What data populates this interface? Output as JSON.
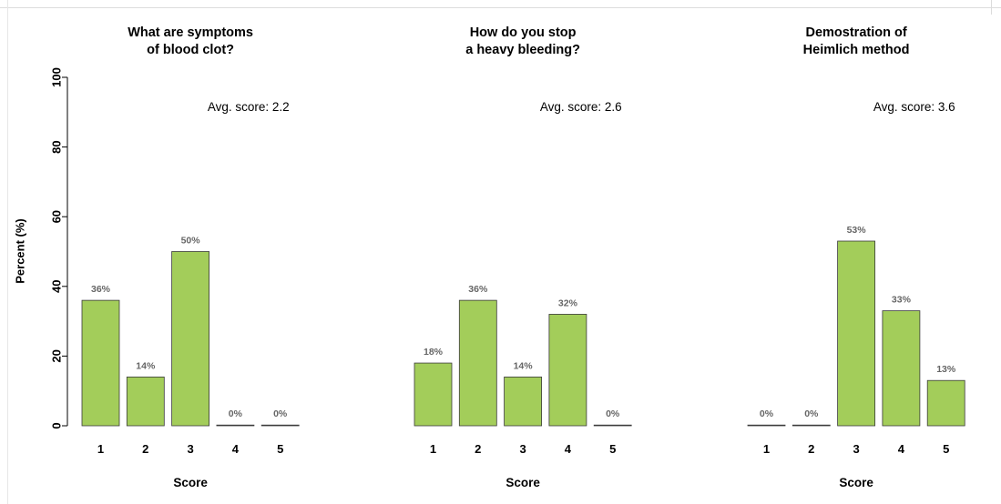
{
  "chart_data": [
    {
      "type": "bar",
      "title": [
        "What are symptoms",
        "of blood clot?"
      ],
      "categories": [
        "1",
        "2",
        "3",
        "4",
        "5"
      ],
      "values": [
        36,
        14,
        50,
        0,
        0
      ],
      "data_labels": [
        "36%",
        "14%",
        "50%",
        "0%",
        "0%"
      ],
      "annotation": "Avg. score: 2.2",
      "xlabel": "Score",
      "ylabel": "Percent (%)",
      "ylim": [
        0,
        100
      ],
      "yticks": [
        "0",
        "20",
        "40",
        "60",
        "80",
        "100"
      ],
      "bar_color": "#a3cd5a"
    },
    {
      "type": "bar",
      "title": [
        "How do you stop",
        "a heavy bleeding?"
      ],
      "categories": [
        "1",
        "2",
        "3",
        "4",
        "5"
      ],
      "values": [
        18,
        36,
        14,
        32,
        0
      ],
      "data_labels": [
        "18%",
        "36%",
        "14%",
        "32%",
        "0%"
      ],
      "annotation": "Avg. score: 2.6",
      "xlabel": "Score",
      "ylim": [
        0,
        100
      ],
      "bar_color": "#a3cd5a"
    },
    {
      "type": "bar",
      "title": [
        "Demostration of",
        "Heimlich method"
      ],
      "categories": [
        "1",
        "2",
        "3",
        "4",
        "5"
      ],
      "values": [
        0,
        0,
        53,
        33,
        13
      ],
      "data_labels": [
        "0%",
        "0%",
        "53%",
        "33%",
        "13%"
      ],
      "annotation": "Avg. score: 3.6",
      "xlabel": "Score",
      "ylim": [
        0,
        100
      ],
      "bar_color": "#a3cd5a"
    }
  ]
}
